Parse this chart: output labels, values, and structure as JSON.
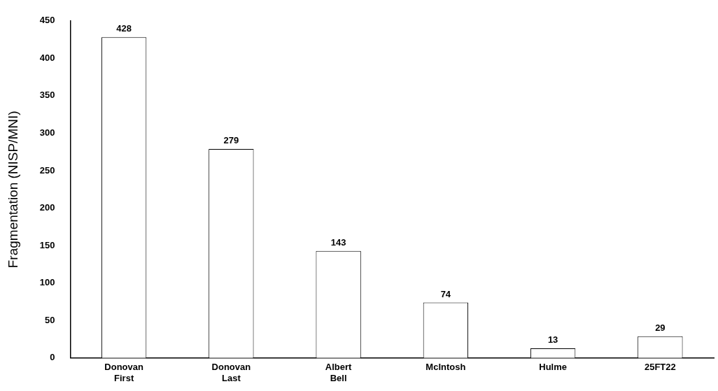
{
  "chart_data": {
    "type": "bar",
    "ylabel": "Fragmentation (NISP/MNI)",
    "categories": [
      "Donovan First",
      "Donovan Last",
      "Albert Bell",
      "McIntosh",
      "Hulme",
      "25FT22"
    ],
    "values": [
      428,
      279,
      143,
      74,
      13,
      29
    ],
    "color": "#ffffff",
    "ylim": [
      0,
      450
    ],
    "yticks": [
      0,
      50,
      100,
      150,
      200,
      250,
      300,
      350,
      400,
      450
    ],
    "grid": false,
    "legend": false,
    "data_labels": true
  }
}
